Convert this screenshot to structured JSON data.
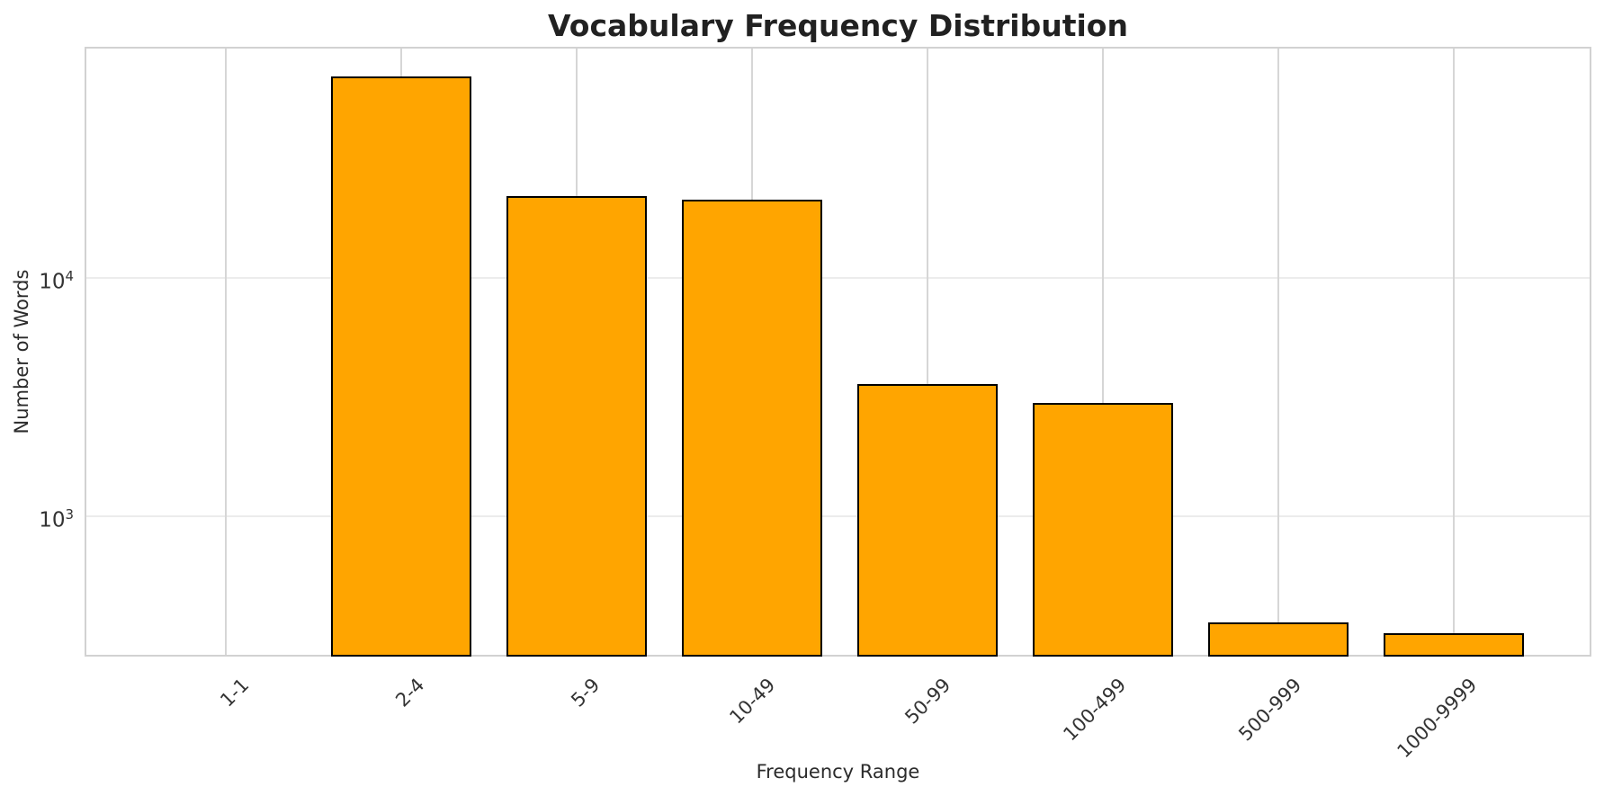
{
  "title": "Vocabulary Frequency Distribution",
  "colors": {
    "bar_fill": "#FFA500",
    "bar_edge": "#000000"
  },
  "chart_data": {
    "type": "bar",
    "title": "Vocabulary Frequency Distribution",
    "xlabel": "Frequency Range",
    "ylabel": "Number of Words",
    "categories": [
      "1-1",
      "2-4",
      "5-9",
      "10-49",
      "50-99",
      "100-499",
      "500-999",
      "1000-9999"
    ],
    "values": [
      0,
      70000,
      22000,
      21300,
      3600,
      3000,
      360,
      325
    ],
    "yscale": "log",
    "ylim": [
      254,
      91700
    ],
    "yticks": [
      {
        "value": 1000,
        "base": "10",
        "exp": "3"
      },
      {
        "value": 10000,
        "base": "10",
        "exp": "4"
      }
    ],
    "grid": true,
    "legend": null,
    "bar_color": "#FFA500",
    "bar_edge_color": "#000000"
  }
}
